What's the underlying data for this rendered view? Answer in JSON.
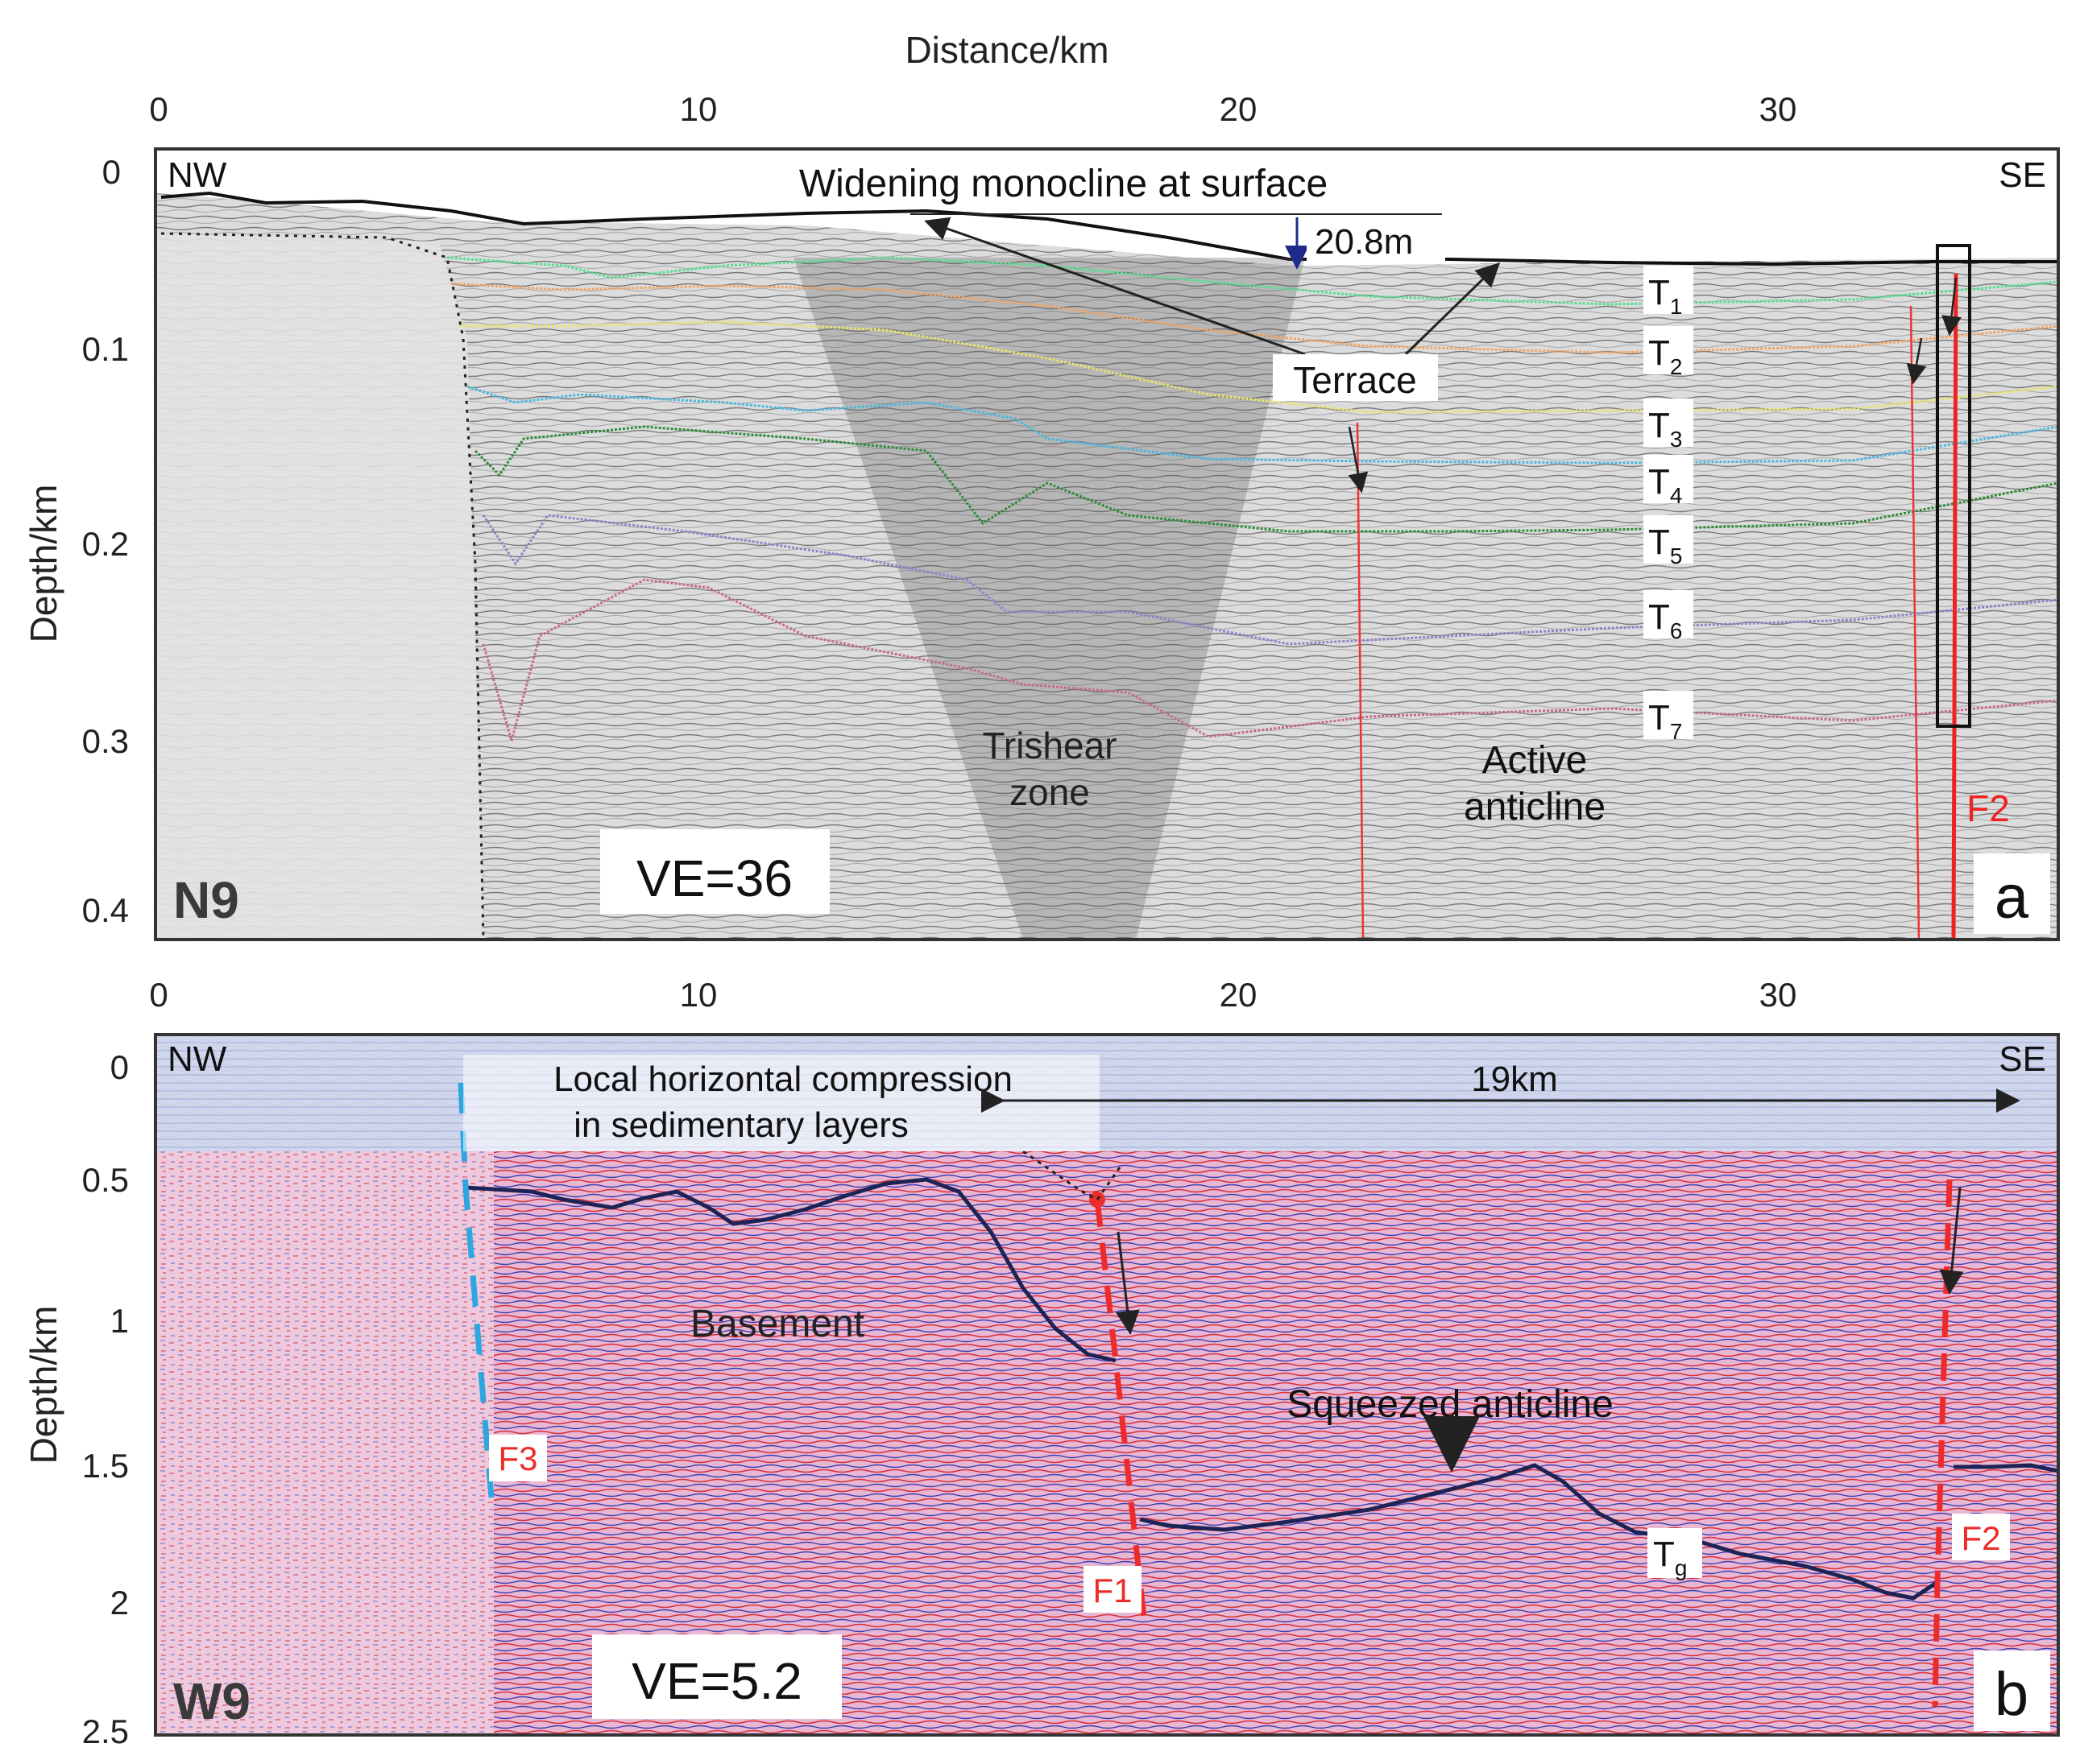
{
  "figure": {
    "top_axis_title": "Distance/km",
    "distance_ticks": [
      "0",
      "10",
      "20",
      "30"
    ],
    "panel_a": {
      "section_id": "N9",
      "panel_letter": "a",
      "y_axis_title": "Depth/km",
      "depth_ticks": [
        "0",
        "0.1",
        "0.2",
        "0.3",
        "0.4"
      ],
      "left_direction": "NW",
      "right_direction": "SE",
      "monocline_label": "Widening monocline at surface",
      "offset_label": "20.8m",
      "terrace_label": "Terrace",
      "trishear_label_1": "Trishear",
      "trishear_label_2": "zone",
      "anticline_label_1": "Active",
      "anticline_label_2": "anticline",
      "fault_label": "F2",
      "ve_label": "VE=36",
      "horizons": [
        {
          "letter": "T",
          "sub": "1",
          "color": "#52e08f"
        },
        {
          "letter": "T",
          "sub": "2",
          "color": "#f4a462"
        },
        {
          "letter": "T",
          "sub": "3",
          "color": "#e8e46a"
        },
        {
          "letter": "T",
          "sub": "4",
          "color": "#4bb8e0"
        },
        {
          "letter": "T",
          "sub": "5",
          "color": "#2e8b3a"
        },
        {
          "letter": "T",
          "sub": "6",
          "color": "#8a86c8"
        },
        {
          "letter": "T",
          "sub": "7",
          "color": "#c66a8e"
        }
      ]
    },
    "panel_b": {
      "section_id": "W9",
      "panel_letter": "b",
      "y_axis_title": "Depth/km",
      "depth_ticks": [
        "0",
        "0.5",
        "1",
        "1.5",
        "2",
        "2.5"
      ],
      "left_direction": "NW",
      "right_direction": "SE",
      "compression_label_1": "Local horizontal compression",
      "compression_label_2": "in sedimentary layers",
      "width_label": "19km",
      "basement_label": "Basement",
      "squeezed_label": "Squeezed anticline",
      "horizon_letter": "T",
      "horizon_sub": "g",
      "fault_labels": [
        "F1",
        "F2",
        "F3"
      ],
      "ve_label": "VE=5.2"
    }
  }
}
